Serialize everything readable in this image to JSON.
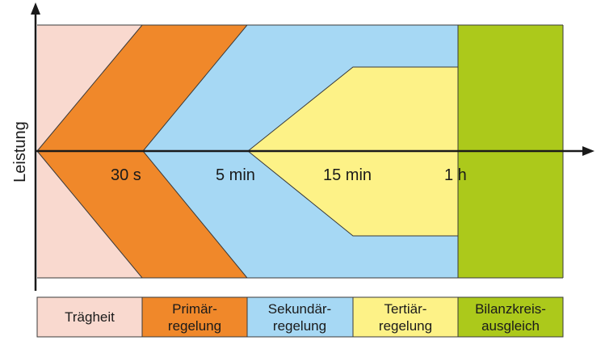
{
  "y_axis_label": "Leistung",
  "time_marks": [
    "30 s",
    "5 min",
    "15 min",
    "1 h"
  ],
  "legend": [
    {
      "lines": [
        "Trägheit"
      ],
      "color": "#f9d9cf"
    },
    {
      "lines": [
        "Primär-",
        "regelung"
      ],
      "color": "#f0882a"
    },
    {
      "lines": [
        "Sekundär-",
        "regelung"
      ],
      "color": "#a6d8f4"
    },
    {
      "lines": [
        "Tertiär-",
        "regelung"
      ],
      "color": "#fdf287"
    },
    {
      "lines": [
        "Bilanzkreis-",
        "ausgleich"
      ],
      "color": "#acc91b"
    }
  ]
}
